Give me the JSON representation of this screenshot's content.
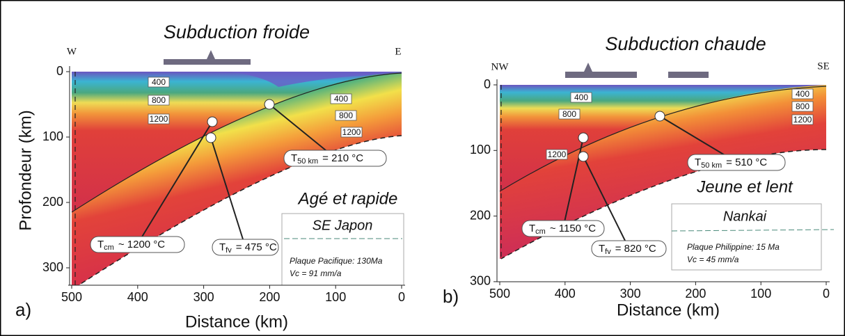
{
  "panels": [
    {
      "letter": "a)",
      "title": "Subduction froide",
      "left_dir": "W",
      "right_dir": "E",
      "y_label": "Profondeur (km)",
      "x_label": "Distance (km)",
      "x_ticks": [
        500,
        400,
        300,
        200,
        100,
        0
      ],
      "y_ticks": [
        0,
        100,
        200,
        300
      ],
      "contours_left": [
        "400",
        "800",
        "1200"
      ],
      "contours_right": [
        "400",
        "800",
        "1200"
      ],
      "t_cm": {
        "symbol": "T",
        "subscript": "cm",
        "text": "~ 1200 °C"
      },
      "t_fv": {
        "symbol": "T",
        "subscript": "fv",
        "text": "= 475 °C"
      },
      "t_50": {
        "symbol": "T",
        "subscript": "50 km",
        "text": "= 210 °C"
      },
      "regime": "Agé et rapide",
      "region": "SE Japon",
      "plate": "Plaque Pacifique: 130Ma",
      "velocity": "Vc = 91 mm/a"
    },
    {
      "letter": "b)",
      "title": "Subduction chaude",
      "left_dir": "NW",
      "right_dir": "SE",
      "x_label": "Distance (km)",
      "x_ticks": [
        500,
        400,
        300,
        200,
        100,
        0
      ],
      "y_ticks": [
        0,
        100,
        200,
        300
      ],
      "contours_left": [
        "400",
        "800",
        "1200"
      ],
      "contours_right": [
        "400",
        "800",
        "1200"
      ],
      "t_cm": {
        "symbol": "T",
        "subscript": "cm",
        "text": "~ 1150 °C"
      },
      "t_fv": {
        "symbol": "T",
        "subscript": "fv",
        "text": "= 820 °C"
      },
      "t_50": {
        "symbol": "T",
        "subscript": "50 km",
        "text": "= 510 °C"
      },
      "regime": "Jeune et lent",
      "region": "Nankai",
      "plate": "Plaque Philippine: 15 Ma",
      "velocity": "Vc = 45 mm/a"
    }
  ]
}
